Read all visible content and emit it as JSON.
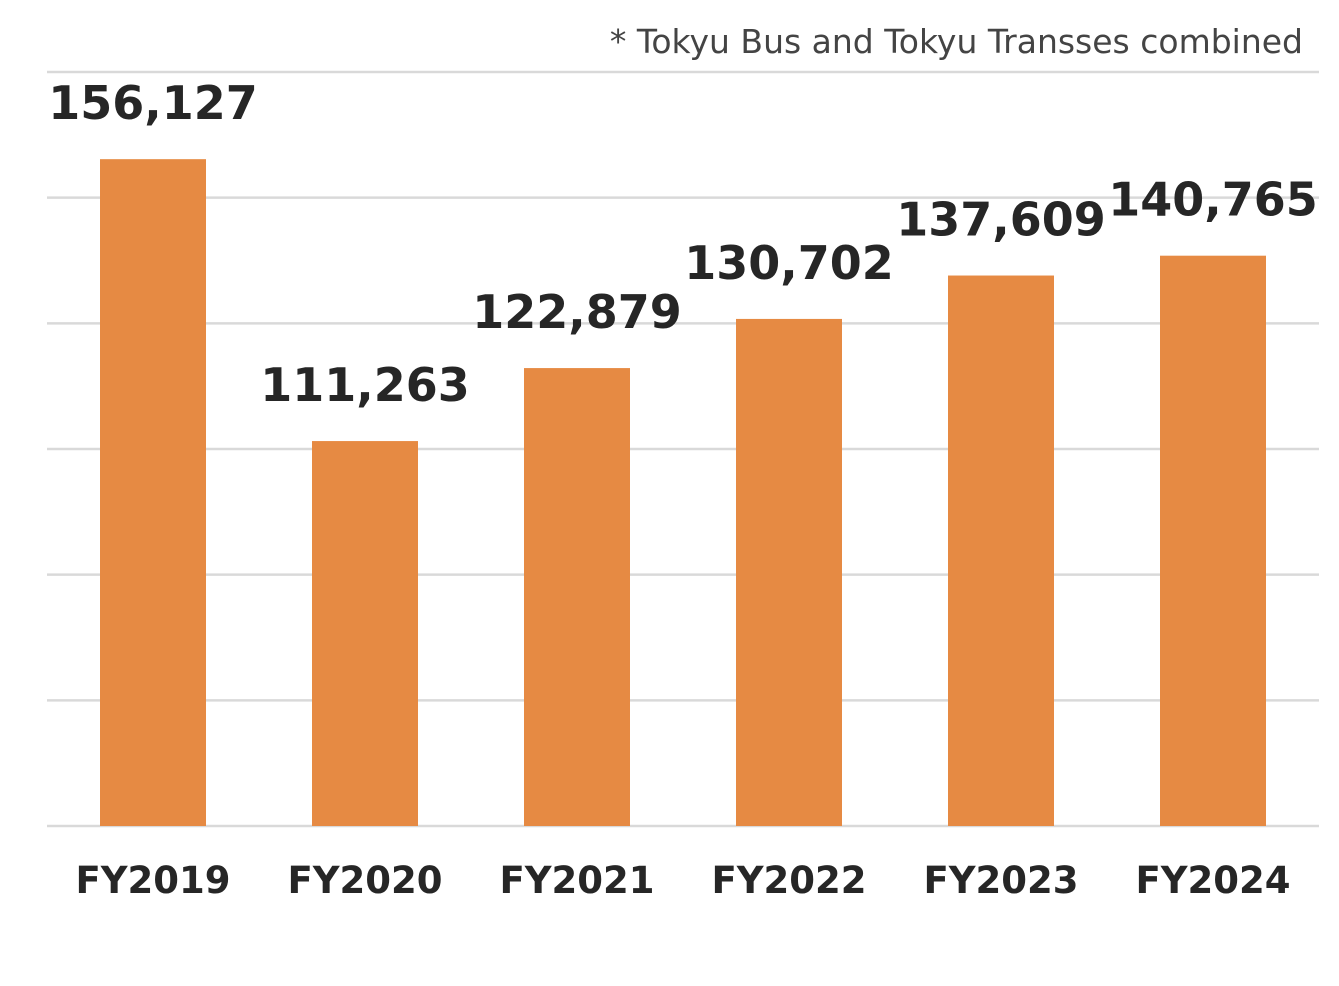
{
  "chart_data": {
    "type": "bar",
    "title": "",
    "annotation": "* Tokyu Bus and Tokyu Transses combined",
    "xlabel": "",
    "ylabel": "",
    "categories": [
      "FY2019",
      "FY2020",
      "FY2021",
      "FY2022",
      "FY2023",
      "FY2024"
    ],
    "values": [
      156127,
      111263,
      122879,
      130702,
      137609,
      140765
    ],
    "data_labels": [
      "156,127",
      "111,263",
      "122,879",
      "130,702",
      "137,609",
      "140,765"
    ],
    "ylim": [
      50000,
      170000
    ],
    "ytick_step": 20000,
    "grid": true,
    "legend": "none",
    "colors": {
      "bar": "#E68A43",
      "grid": "#D9D9D9",
      "text": "#262626"
    }
  }
}
